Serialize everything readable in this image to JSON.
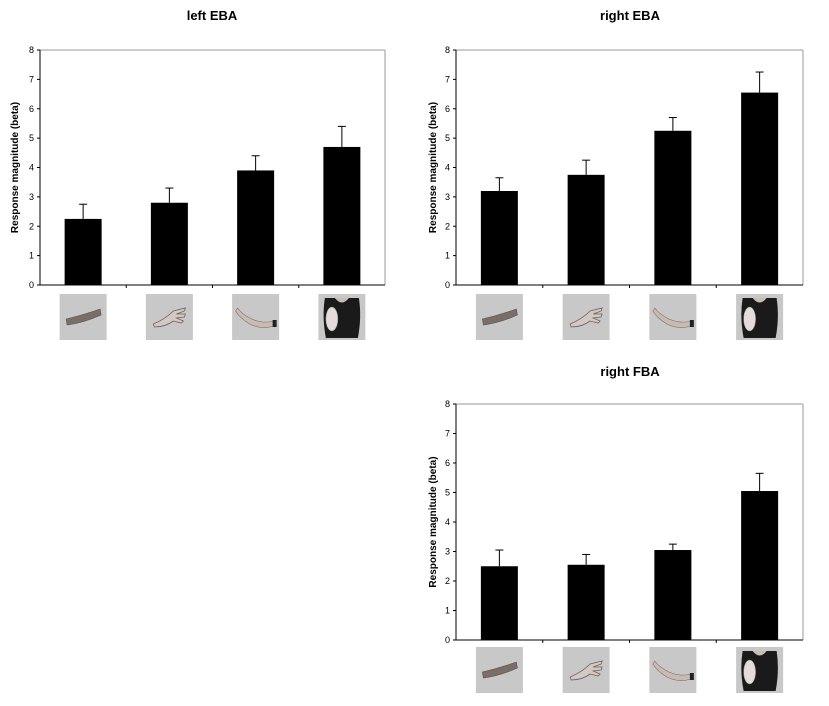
{
  "chart_data": [
    {
      "type": "bar",
      "title": "left EBA",
      "ylabel": "Response magnitude (beta)",
      "ylim": [
        0,
        8
      ],
      "yticks": [
        0,
        1,
        2,
        3,
        4,
        5,
        6,
        7,
        8
      ],
      "categories": [
        "forearm",
        "hand",
        "arm",
        "torso"
      ],
      "values": [
        2.25,
        2.8,
        3.9,
        4.7
      ],
      "error": [
        0.5,
        0.5,
        0.5,
        0.7
      ],
      "grid": false,
      "colors": {
        "bar": "#000000",
        "thumb_bg": "#c8c8c8"
      }
    },
    {
      "type": "bar",
      "title": "right EBA",
      "ylabel": "Response magnitude (beta)",
      "ylim": [
        0,
        8
      ],
      "yticks": [
        0,
        1,
        2,
        3,
        4,
        5,
        6,
        7,
        8
      ],
      "categories": [
        "forearm",
        "hand",
        "arm",
        "torso"
      ],
      "values": [
        3.2,
        3.75,
        5.25,
        6.55
      ],
      "error": [
        0.45,
        0.5,
        0.45,
        0.7
      ],
      "grid": false,
      "colors": {
        "bar": "#000000",
        "thumb_bg": "#c8c8c8"
      }
    },
    {
      "type": "bar",
      "title": "right FBA",
      "ylabel": "Response magnitude (beta)",
      "ylim": [
        0,
        8
      ],
      "yticks": [
        0,
        1,
        2,
        3,
        4,
        5,
        6,
        7,
        8
      ],
      "categories": [
        "forearm",
        "hand",
        "arm",
        "torso"
      ],
      "values": [
        2.5,
        2.55,
        3.05,
        5.05
      ],
      "error": [
        0.55,
        0.35,
        0.2,
        0.6
      ],
      "grid": false,
      "colors": {
        "bar": "#000000",
        "thumb_bg": "#c8c8c8"
      }
    }
  ]
}
